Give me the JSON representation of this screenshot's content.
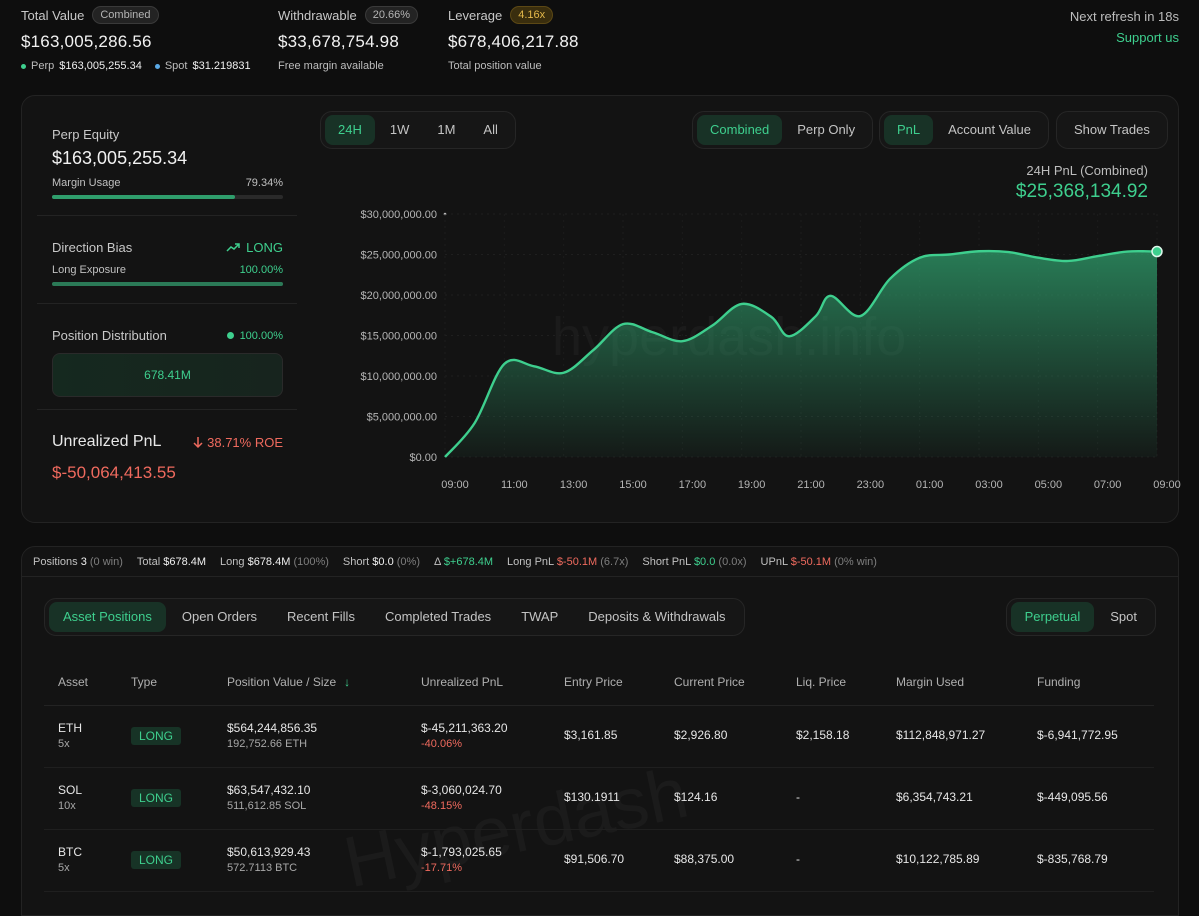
{
  "summary": {
    "total_value": {
      "label": "Total Value",
      "badge": "Combined",
      "value": "$163,005,286.56",
      "perp_label": "Perp",
      "perp_value": "$163,005,255.34",
      "spot_label": "Spot",
      "spot_value": "$31.219831"
    },
    "withdrawable": {
      "label": "Withdrawable",
      "badge": "20.66%",
      "value": "$33,678,754.98",
      "sub": "Free margin available"
    },
    "leverage": {
      "label": "Leverage",
      "badge": "4.16x",
      "value": "$678,406,217.88",
      "sub": "Total position value"
    },
    "refresh": "Next refresh in 18s",
    "support": "Support us"
  },
  "left_panel": {
    "perp_equity_label": "Perp Equity",
    "perp_equity_value": "$163,005,255.34",
    "margin_usage_label": "Margin Usage",
    "margin_usage_value": "79.34%",
    "margin_usage_fraction": 0.7934,
    "direction_bias_label": "Direction Bias",
    "direction_bias_value": "LONG",
    "long_exposure_label": "Long Exposure",
    "long_exposure_value": "100.00%",
    "long_exposure_fraction": 1.0,
    "position_distribution_label": "Position Distribution",
    "position_distribution_pct": "100.00%",
    "position_distribution_value": "678.41M",
    "unrealized_pnl_label": "Unrealized PnL",
    "unrealized_pnl_roe": "38.71% ROE",
    "unrealized_pnl_value": "$-50,064,413.55"
  },
  "controls": {
    "ranges": [
      "24H",
      "1W",
      "1M",
      "All"
    ],
    "active_range": "24H",
    "scope": [
      "Combined",
      "Perp Only"
    ],
    "active_scope": "Combined",
    "metric": [
      "PnL",
      "Account Value"
    ],
    "active_metric": "PnL",
    "show_trades": "Show Trades"
  },
  "watermark": "hyperdash.info",
  "watermark_table": "Hyperdash",
  "chart_data": {
    "type": "area",
    "title": "24H PnL (Combined)",
    "headline_value": "$25,368,134.92",
    "x_ticks": [
      "09:00",
      "11:00",
      "13:00",
      "15:00",
      "17:00",
      "19:00",
      "21:00",
      "23:00",
      "01:00",
      "03:00",
      "05:00",
      "07:00",
      "09:00"
    ],
    "y_ticks": [
      "$0.00",
      "$5,000,000.00",
      "$10,000,000.00",
      "$15,000,000.00",
      "$20,000,000.00",
      "$25,000,000.00",
      "$30,000,000.00"
    ],
    "ylim": [
      0,
      30000000
    ],
    "x_hours": [
      0,
      1,
      2,
      3,
      4,
      5,
      6,
      7,
      8,
      9,
      10,
      11,
      11.6,
      12.5,
      13,
      14,
      15,
      16,
      17,
      18,
      19,
      20,
      21,
      22,
      23,
      24
    ],
    "values": [
      0,
      4200000,
      11500000,
      11200000,
      10400000,
      13200000,
      16400000,
      15400000,
      14300000,
      16200000,
      18900000,
      17300000,
      14900000,
      17400000,
      19900000,
      17400000,
      22000000,
      24600000,
      25000000,
      25400000,
      25300000,
      24600000,
      24200000,
      24800000,
      25368134.92,
      25368134.92
    ],
    "grid": true
  },
  "positions_strip": {
    "positions_label": "Positions",
    "positions_count": "3",
    "positions_win": "(0 win)",
    "total_label": "Total",
    "total_value": "$678.4M",
    "long_label": "Long",
    "long_value": "$678.4M",
    "long_pct": "(100%)",
    "short_label": "Short",
    "short_value": "$0.0",
    "short_pct": "(0%)",
    "delta_label": "Δ",
    "delta_value": "$+678.4M",
    "long_pnl_label": "Long PnL",
    "long_pnl_value": "$-50.1M",
    "long_pnl_x": "(6.7x)",
    "short_pnl_label": "Short PnL",
    "short_pnl_value": "$0.0",
    "short_pnl_x": "(0.0x)",
    "upnl_label": "UPnL",
    "upnl_value": "$-50.1M",
    "upnl_win": "(0% win)"
  },
  "tabs": [
    "Asset Positions",
    "Open Orders",
    "Recent Fills",
    "Completed Trades",
    "TWAP",
    "Deposits & Withdrawals"
  ],
  "active_tab": "Asset Positions",
  "mode_tabs": [
    "Perpetual",
    "Spot"
  ],
  "active_mode": "Perpetual",
  "table": {
    "headers": [
      "Asset",
      "Type",
      "Position Value / Size",
      "Unrealized PnL",
      "Entry Price",
      "Current Price",
      "Liq. Price",
      "Margin Used",
      "Funding"
    ],
    "rows": [
      {
        "asset": "ETH",
        "leverage": "5x",
        "type": "LONG",
        "position_value": "$564,244,856.35",
        "size": "192,752.66 ETH",
        "upnl": "$-45,211,363.20",
        "upnl_pct": "-40.06%",
        "entry": "$3,161.85",
        "current": "$2,926.80",
        "liq": "$2,158.18",
        "margin": "$112,848,971.27",
        "funding": "$-6,941,772.95"
      },
      {
        "asset": "SOL",
        "leverage": "10x",
        "type": "LONG",
        "position_value": "$63,547,432.10",
        "size": "511,612.85 SOL",
        "upnl": "$-3,060,024.70",
        "upnl_pct": "-48.15%",
        "entry": "$130.1911",
        "current": "$124.16",
        "liq": "-",
        "margin": "$6,354,743.21",
        "funding": "$-449,095.56"
      },
      {
        "asset": "BTC",
        "leverage": "5x",
        "type": "LONG",
        "position_value": "$50,613,929.43",
        "size": "572.7113 BTC",
        "upnl": "$-1,793,025.65",
        "upnl_pct": "-17.71%",
        "entry": "$91,506.70",
        "current": "$88,375.00",
        "liq": "-",
        "margin": "$10,122,785.89",
        "funding": "$-835,768.79"
      }
    ]
  }
}
